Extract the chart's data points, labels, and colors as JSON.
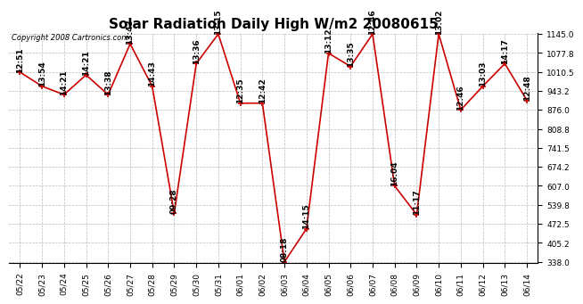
{
  "title": "Solar Radiation Daily High W/m2 20080615",
  "copyright": "Copyright 2008 Cartronics.com",
  "dates": [
    "05/22",
    "05/23",
    "05/24",
    "05/25",
    "05/26",
    "05/27",
    "05/28",
    "05/29",
    "05/30",
    "05/31",
    "06/01",
    "06/02",
    "06/03",
    "06/04",
    "06/05",
    "06/06",
    "06/07",
    "06/08",
    "06/09",
    "06/10",
    "06/11",
    "06/12",
    "06/13",
    "06/14"
  ],
  "values": [
    1010,
    960,
    930,
    1000,
    930,
    1110,
    960,
    510,
    1040,
    1145,
    900,
    900,
    338,
    455,
    1077,
    1030,
    1145,
    607,
    505,
    1145,
    876,
    960,
    1040,
    910
  ],
  "times": [
    "12:51",
    "13:54",
    "14:21",
    "14:21",
    "13:38",
    "13:43",
    "14:43",
    "09:28",
    "13:36",
    "13:15",
    "12:35",
    "12:42",
    "08:18",
    "14:15",
    "13:12",
    "13:35",
    "12:46",
    "16:04",
    "11:17",
    "13:02",
    "12:46",
    "13:03",
    "14:17",
    "12:48"
  ],
  "ymin": 338.0,
  "ymax": 1145.0,
  "yticks": [
    338.0,
    405.2,
    472.5,
    539.8,
    607.0,
    674.2,
    741.5,
    808.8,
    876.0,
    943.2,
    1010.5,
    1077.8,
    1145.0
  ],
  "line_color": "#cc0000",
  "marker_color": "#cc0000",
  "bg_color": "#ffffff",
  "grid_color": "#bbbbbb",
  "title_fontsize": 11,
  "label_fontsize": 6.5,
  "tick_fontsize": 6.5,
  "copyright_fontsize": 6
}
